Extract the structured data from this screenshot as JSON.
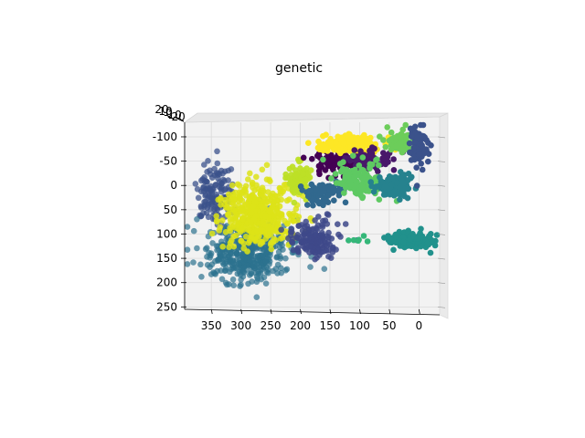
{
  "chart_data": {
    "type": "scatter",
    "title": "genetic",
    "projection": "3d",
    "grid": true,
    "legend": "none",
    "x_ticks": [
      "350",
      "300",
      "250",
      "200",
      "150",
      "100",
      "50",
      "0"
    ],
    "y_ticks": [
      "-100",
      "-50",
      "0",
      "50",
      "100",
      "150",
      "200",
      "250"
    ],
    "z_ticks": [
      "20",
      "10",
      "0",
      "-10",
      "-20"
    ],
    "xlim": [
      395,
      -35
    ],
    "ylim": [
      -130,
      255
    ],
    "clusters": [
      {
        "color": "#3b528b",
        "center": [
          345,
          15
        ],
        "spread": [
          30,
          65
        ],
        "count": 130,
        "opacity": 0.75
      },
      {
        "color": "#2c728e",
        "center": [
          290,
          140
        ],
        "spread": [
          75,
          55
        ],
        "count": 420,
        "opacity": 0.7
      },
      {
        "color": "#dde318",
        "center": [
          270,
          60
        ],
        "spread": [
          60,
          65
        ],
        "count": 460,
        "opacity": 0.85
      },
      {
        "color": "#3e4989",
        "center": [
          180,
          110
        ],
        "spread": [
          40,
          35
        ],
        "count": 150,
        "opacity": 0.85
      },
      {
        "color": "#bddf26",
        "center": [
          200,
          -10
        ],
        "spread": [
          18,
          35
        ],
        "count": 90,
        "opacity": 0.95
      },
      {
        "color": "#440154",
        "center": [
          135,
          -52
        ],
        "spread": [
          40,
          25
        ],
        "count": 110,
        "opacity": 1.0
      },
      {
        "color": "#fde725",
        "center": [
          115,
          -85
        ],
        "spread": [
          50,
          18
        ],
        "count": 160,
        "opacity": 1.0
      },
      {
        "color": "#31688e",
        "center": [
          160,
          15
        ],
        "spread": [
          28,
          25
        ],
        "count": 80,
        "opacity": 1.0
      },
      {
        "color": "#48186a",
        "center": [
          85,
          -52
        ],
        "spread": [
          35,
          22
        ],
        "count": 80,
        "opacity": 1.0
      },
      {
        "color": "#5ec962",
        "center": [
          105,
          -10
        ],
        "spread": [
          40,
          40
        ],
        "count": 130,
        "opacity": 1.0
      },
      {
        "color": "#26828e",
        "center": [
          40,
          2
        ],
        "spread": [
          30,
          22
        ],
        "count": 150,
        "opacity": 1.0
      },
      {
        "color": "#21918c",
        "center": [
          15,
          112
        ],
        "spread": [
          35,
          15
        ],
        "count": 180,
        "opacity": 1.0
      },
      {
        "color": "#6ccd5a",
        "center": [
          25,
          -88
        ],
        "spread": [
          25,
          25
        ],
        "count": 80,
        "opacity": 1.0
      },
      {
        "color": "#3b528b",
        "center": [
          0,
          -80
        ],
        "spread": [
          18,
          45
        ],
        "count": 80,
        "opacity": 1.0
      },
      {
        "color": "#35b779",
        "center": [
          100,
          108
        ],
        "spread": [
          25,
          8
        ],
        "count": 6,
        "opacity": 1.0
      }
    ]
  }
}
